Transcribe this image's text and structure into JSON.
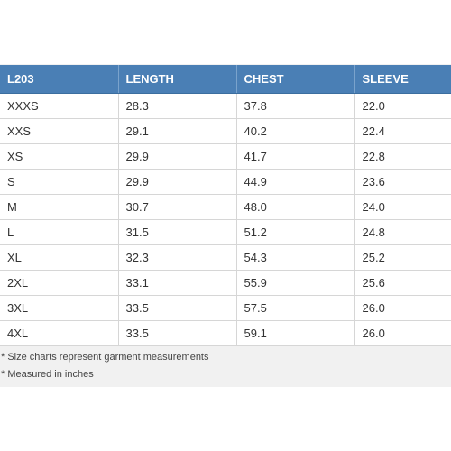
{
  "table": {
    "headers": [
      "L203",
      "LENGTH",
      "CHEST",
      "SLEEVE"
    ],
    "rows": [
      [
        "XXXS",
        "28.3",
        "37.8",
        "22.0"
      ],
      [
        "XXS",
        "29.1",
        "40.2",
        "22.4"
      ],
      [
        "XS",
        "29.9",
        "41.7",
        "22.8"
      ],
      [
        "S",
        "29.9",
        "44.9",
        "23.6"
      ],
      [
        "M",
        "30.7",
        "48.0",
        "24.0"
      ],
      [
        "L",
        "31.5",
        "51.2",
        "24.8"
      ],
      [
        "XL",
        "32.3",
        "54.3",
        "25.2"
      ],
      [
        "2XL",
        "33.1",
        "55.9",
        "25.6"
      ],
      [
        "3XL",
        "33.5",
        "57.5",
        "26.0"
      ],
      [
        "4XL",
        "33.5",
        "59.1",
        "26.0"
      ]
    ]
  },
  "notes": [
    "* Size charts represent garment measurements",
    "* Measured in inches"
  ],
  "colors": {
    "header_bg": "#4a7fb5",
    "header_text": "#ffffff",
    "panel_bg": "#f1f1f1"
  }
}
